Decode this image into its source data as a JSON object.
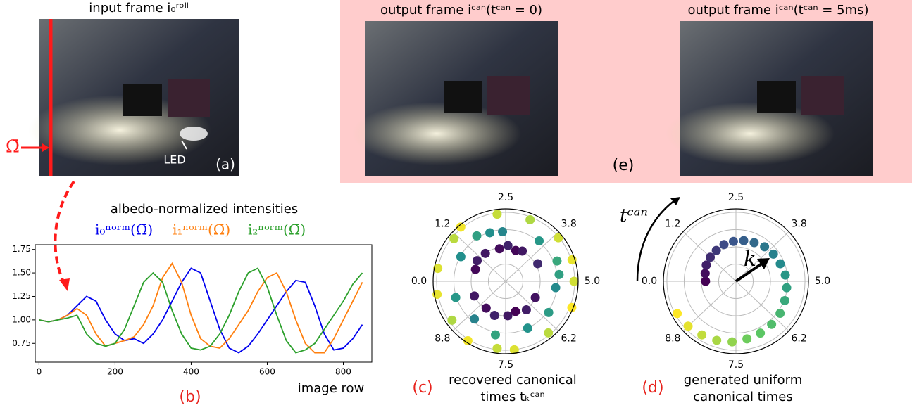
{
  "figure": {
    "panel_a": {
      "title": "input frame i₀ʳᵒˡˡ",
      "omega": "Ω̄",
      "led": "LED",
      "tag": "(a)"
    },
    "panel_e": {
      "titles": [
        "output frame iᶜᵃⁿ(tᶜᵃⁿ = 0)",
        "output frame iᶜᵃⁿ(tᶜᵃⁿ = 5ms)"
      ],
      "tag": "(e)"
    }
  },
  "chart_data": [
    {
      "type": "line",
      "title": "albedo-normalized intensities",
      "xlabel": "image row",
      "tag": "(b)",
      "x": [
        0,
        25,
        50,
        75,
        100,
        125,
        150,
        175,
        200,
        225,
        250,
        275,
        300,
        325,
        350,
        375,
        400,
        425,
        450,
        475,
        500,
        525,
        550,
        575,
        600,
        625,
        650,
        675,
        700,
        725,
        750,
        775,
        800,
        825,
        850
      ],
      "series": [
        {
          "name": "i₀ⁿᵒʳᵐ(Ω̄)",
          "color": "#0000ee",
          "values": [
            1.0,
            0.98,
            1.0,
            1.05,
            1.15,
            1.25,
            1.2,
            1.0,
            0.85,
            0.78,
            0.8,
            0.75,
            0.85,
            1.0,
            1.2,
            1.4,
            1.55,
            1.5,
            1.2,
            0.9,
            0.7,
            0.65,
            0.72,
            0.85,
            1.0,
            1.15,
            1.3,
            1.42,
            1.4,
            1.15,
            0.85,
            0.68,
            0.7,
            0.8,
            0.95
          ]
        },
        {
          "name": "i₁ⁿᵒʳᵐ(Ω̄)",
          "color": "#ff7f0e",
          "values": [
            1.0,
            0.98,
            1.0,
            1.05,
            1.12,
            1.05,
            0.85,
            0.72,
            0.75,
            0.78,
            0.82,
            0.95,
            1.15,
            1.45,
            1.6,
            1.4,
            1.05,
            0.8,
            0.72,
            0.7,
            0.8,
            0.95,
            1.1,
            1.3,
            1.45,
            1.5,
            1.3,
            1.0,
            0.75,
            0.65,
            0.65,
            0.8,
            1.0,
            1.2,
            1.4
          ]
        },
        {
          "name": "i₂ⁿᵒʳᵐ(Ω̄)",
          "color": "#2ca02c",
          "values": [
            1.0,
            0.98,
            1.0,
            1.02,
            1.05,
            0.85,
            0.75,
            0.72,
            0.75,
            0.9,
            1.15,
            1.4,
            1.5,
            1.4,
            1.1,
            0.85,
            0.7,
            0.68,
            0.72,
            0.85,
            1.05,
            1.3,
            1.5,
            1.55,
            1.35,
            1.05,
            0.78,
            0.65,
            0.68,
            0.75,
            0.9,
            1.05,
            1.2,
            1.38,
            1.5
          ]
        }
      ],
      "xlim": [
        -10,
        875
      ],
      "xticks": [
        0,
        200,
        400,
        600,
        800
      ],
      "ylim": [
        0.55,
        1.8
      ],
      "yticks": [
        0.75,
        {
          "value": 1,
          "label": "1.00"
        },
        1.25,
        {
          "value": 1.5,
          "label": "1.50"
        },
        1.75
      ]
    },
    {
      "type": "polar",
      "tag": "(c)",
      "caption": [
        "recovered canonical",
        "times tₖᶜᵃⁿ"
      ],
      "colormap": "viridis",
      "thetalim": [
        0,
        10
      ],
      "thetaticks": [
        {
          "value": 0,
          "label": "0.0"
        },
        1.2,
        2.5,
        3.8,
        {
          "value": 5,
          "label": "5.0"
        },
        6.2,
        7.5,
        8.8
      ],
      "rlim": [
        0,
        1.05
      ],
      "rticks": [
        0.25,
        0.5,
        0.75,
        1.0
      ],
      "theta": [
        1.5,
        2.2,
        2.6,
        3.0,
        3.3,
        4.2,
        5.8,
        6.5,
        7.0,
        7.4,
        8.0,
        8.5,
        9.3,
        0.6,
        1.0,
        0.8,
        1.6,
        2.4,
        3.6,
        4.4,
        5.2,
        6.0,
        6.8,
        7.8,
        8.6,
        9.5,
        2.0,
        4.8,
        0.3,
        1.1,
        1.4,
        2.3,
        3.1,
        4.5,
        5.0,
        5.6,
        6.4,
        7.3,
        7.7,
        8.4,
        9.0,
        9.7,
        3.9
      ],
      "r": [
        0.5,
        0.48,
        0.52,
        0.47,
        0.5,
        0.53,
        0.49,
        0.51,
        0.46,
        0.5,
        0.52,
        0.48,
        0.5,
        0.47,
        0.51,
        0.74,
        0.78,
        0.72,
        0.76,
        0.8,
        0.73,
        0.77,
        0.75,
        0.79,
        0.71,
        0.76,
        0.74,
        0.78,
        1.0,
        0.97,
        1.02,
        0.98,
        0.96,
        1.01,
        0.99,
        1.03,
        0.97,
        1.0,
        0.98,
        1.02,
        0.96,
        1.01,
        0.99
      ]
    },
    {
      "type": "polar",
      "tag": "(d)",
      "caption": [
        "generated uniform",
        "canonical times"
      ],
      "colormap": "viridis",
      "annotations": {
        "t": "tᶜᵃⁿ",
        "k": "k"
      },
      "thetalim": [
        0,
        10
      ],
      "thetaticks": [
        {
          "value": 0,
          "label": "0.0"
        },
        1.2,
        2.5,
        3.8,
        {
          "value": 5,
          "label": "5.0"
        },
        6.2,
        7.5,
        8.8
      ],
      "rlim": [
        0,
        1.05
      ],
      "rticks": [
        0.25,
        0.5,
        0.75,
        1.0
      ],
      "theta": [
        0,
        0.4,
        0.8,
        1.2,
        1.6,
        2.0,
        2.4,
        2.8,
        3.2,
        3.6,
        4.0,
        4.4,
        4.8,
        5.2,
        5.6,
        6.0,
        6.4,
        6.8,
        7.2,
        7.6,
        8.0,
        8.4,
        8.8,
        9.2
      ],
      "r": [
        0.44,
        0.46,
        0.49,
        0.51,
        0.53,
        0.56,
        0.58,
        0.6,
        0.62,
        0.65,
        0.67,
        0.69,
        0.72,
        0.74,
        0.76,
        0.79,
        0.81,
        0.83,
        0.85,
        0.88,
        0.9,
        0.92,
        0.95,
        0.97
      ]
    }
  ]
}
